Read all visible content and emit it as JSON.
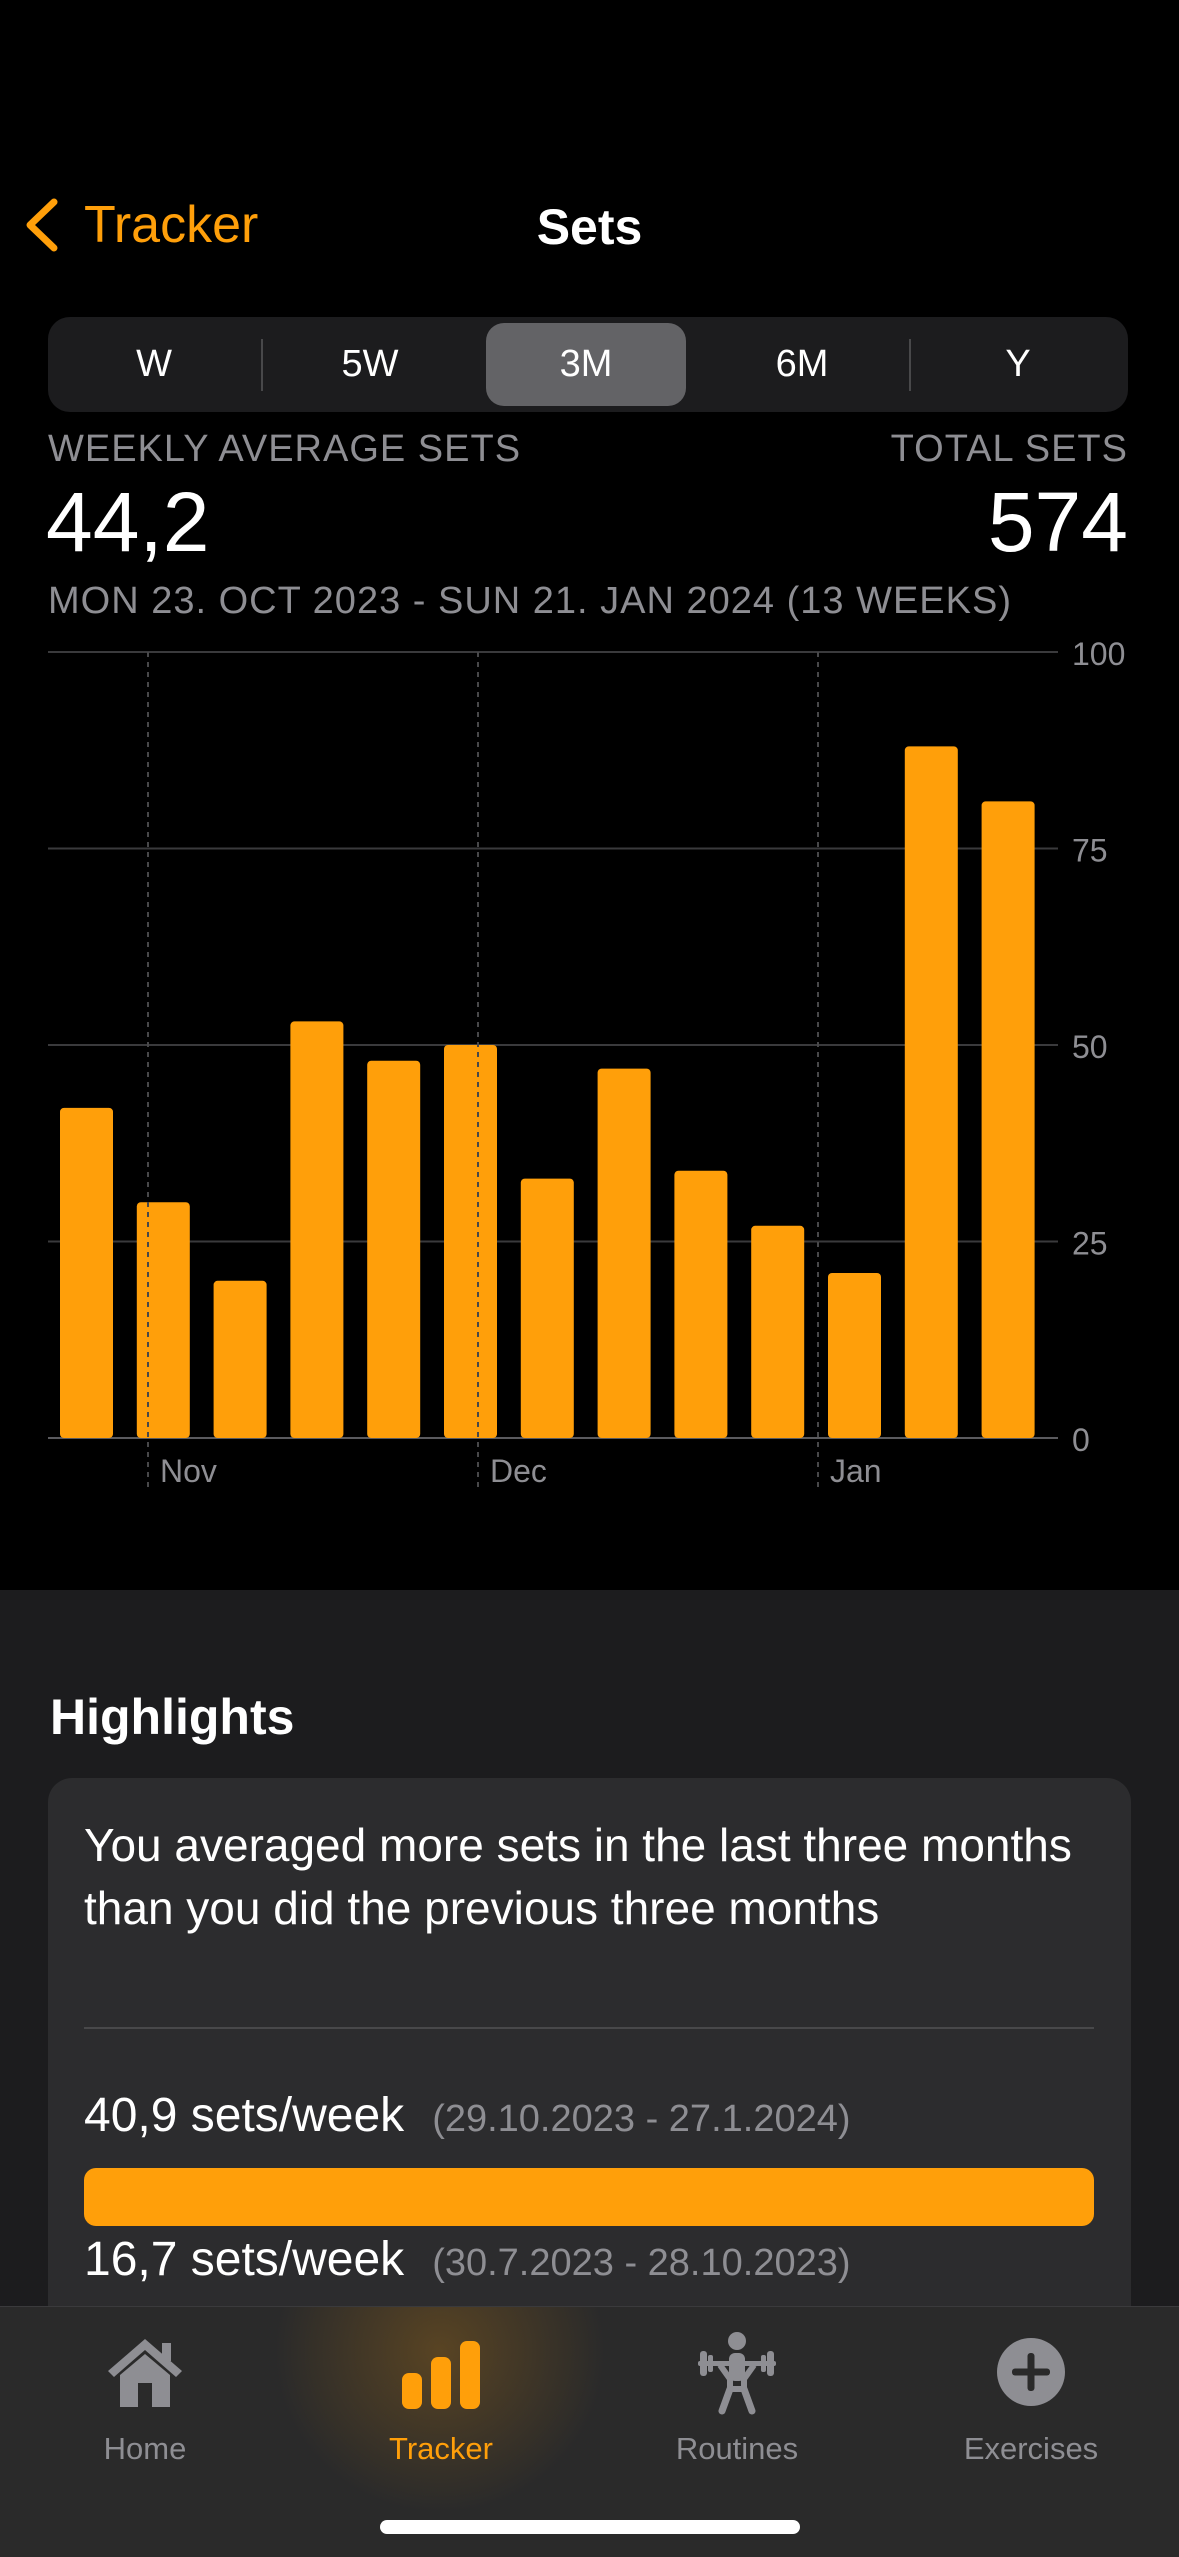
{
  "nav": {
    "back_label": "Tracker",
    "title": "Sets"
  },
  "segments": {
    "items": [
      "W",
      "5W",
      "3M",
      "6M",
      "Y"
    ],
    "selected": "3M"
  },
  "stats": {
    "left_label": "WEEKLY AVERAGE SETS",
    "left_value": "44,2",
    "right_label": "TOTAL SETS",
    "right_value": "574",
    "range": "MON 23. OCT 2023 - SUN 21. JAN 2024 (13 WEEKS)"
  },
  "chart_data": {
    "type": "bar",
    "values": [
      42,
      30,
      20,
      53,
      48,
      50,
      33,
      47,
      34,
      27,
      21,
      88,
      81
    ],
    "month_labels": [
      "Nov",
      "Dec",
      "Jan"
    ],
    "y_ticks": [
      "100",
      "75",
      "50",
      "25",
      "0"
    ],
    "ylim": [
      0,
      100
    ],
    "grid": true,
    "bar_color": "#FF9F0A"
  },
  "highlights": {
    "title": "Highlights",
    "card_text": "You averaged more sets in the last three months than you did the previous three months",
    "current_value": "40,9 sets/week",
    "current_range": "(29.10.2023 - 27.1.2024)",
    "current_fraction": 1.0,
    "previous_value": "16,7 sets/week",
    "previous_range": "(30.7.2023 - 28.10.2023)"
  },
  "tabbar": {
    "items": [
      {
        "label": "Home",
        "icon": "house-icon"
      },
      {
        "label": "Tracker",
        "icon": "bar-chart-icon"
      },
      {
        "label": "Routines",
        "icon": "weightlifter-icon"
      },
      {
        "label": "Exercises",
        "icon": "plus-circle-icon"
      }
    ],
    "active": "Tracker",
    "accent": "#FF9F0A"
  }
}
